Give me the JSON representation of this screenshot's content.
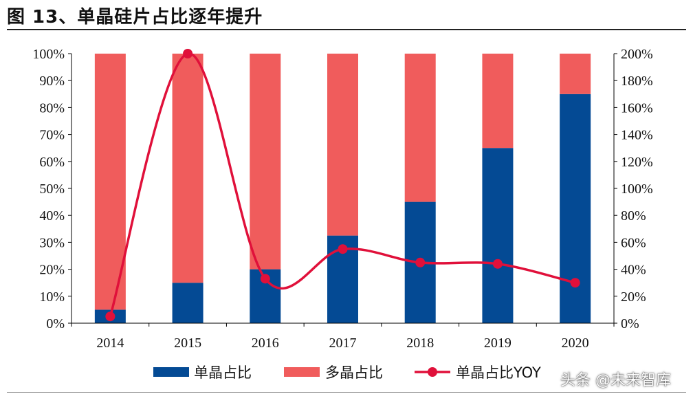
{
  "figure": {
    "title": "图 13、单晶硅片占比逐年提升"
  },
  "colors": {
    "mono": "#044a94",
    "poly": "#f05c5c",
    "yoy": "#e0103a"
  },
  "watermark": {
    "source": "头条 @未来智库"
  },
  "chart_data": {
    "type": "bar",
    "stacked": true,
    "categories": [
      "2014",
      "2015",
      "2016",
      "2017",
      "2018",
      "2019",
      "2020"
    ],
    "series": [
      {
        "name": "单晶占比",
        "axis": "left",
        "type": "bar",
        "values": [
          5,
          15,
          20,
          32.5,
          45,
          65,
          85
        ]
      },
      {
        "name": "多晶占比",
        "axis": "left",
        "type": "bar",
        "values": [
          95,
          85,
          80,
          67.5,
          55,
          35,
          15
        ]
      },
      {
        "name": "单晶占比YOY",
        "axis": "right",
        "type": "line",
        "smooth": true,
        "values": [
          5,
          200,
          33,
          55,
          45,
          44,
          30
        ]
      }
    ],
    "y_left": {
      "ylim": [
        0,
        100
      ],
      "ticks": [
        "0%",
        "10%",
        "20%",
        "30%",
        "40%",
        "50%",
        "60%",
        "70%",
        "80%",
        "90%",
        "100%"
      ]
    },
    "y_right": {
      "ylim": [
        0,
        200
      ],
      "ticks": [
        "0%",
        "20%",
        "40%",
        "60%",
        "80%",
        "100%",
        "120%",
        "140%",
        "160%",
        "180%",
        "200%"
      ]
    },
    "grid": false,
    "legend": "bottom"
  }
}
